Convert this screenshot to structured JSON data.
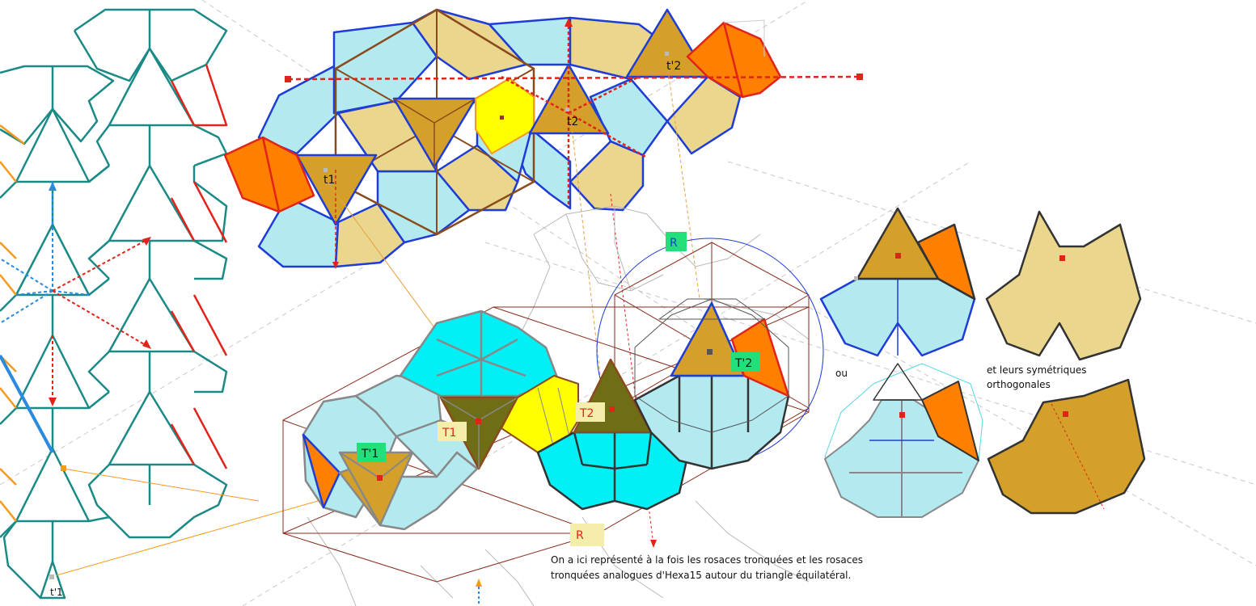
{
  "labels": {
    "t1": "t1",
    "t2": "t2",
    "tp1": "t'1",
    "tp2": "t'2",
    "T1": "T1",
    "T2": "T2",
    "Tp1": "T'1",
    "Tp2": "T'2",
    "R_top": "R",
    "R_bottom": "R",
    "ou": "ou"
  },
  "notes": {
    "symmetric_line1": "et leurs symétriques",
    "symmetric_line2": "orthogonales"
  },
  "caption": {
    "line1": "On a ici représenté à la fois les rosaces tronquées et les rosaces",
    "line2": "tronquées analogues d'Hexa15 autour du triangle équilatéral."
  },
  "colors": {
    "teal": "#1a8a86",
    "red": "#e2231a",
    "orange": "#f59a1b",
    "blue": "#1e3cd6",
    "light_cyan": "#b3eaf0",
    "bright_cyan": "#00f0f5",
    "tan": "#ead68c",
    "gold": "#d4a02a",
    "olive": "#6f6e16",
    "yellow": "#ffff00",
    "dark_orange": "#ff7f00",
    "brown": "#8a4b1c",
    "green_label": "#21e07a",
    "yellow_label": "#f4eeaa"
  }
}
